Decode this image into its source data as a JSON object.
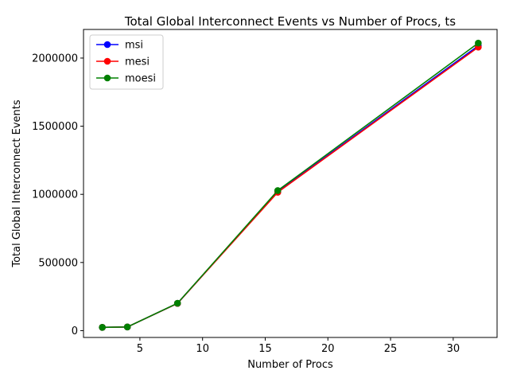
{
  "chart_data": {
    "type": "line",
    "title": "Total Global Interconnect Events vs Number of Procs, ts",
    "xlabel": "Number of Procs",
    "ylabel": "Total Global Interconnect Events",
    "xlim": [
      0.5,
      33.5
    ],
    "ylim": [
      -50000,
      2210000
    ],
    "xticks": [
      5,
      10,
      15,
      20,
      25,
      30
    ],
    "xtick_labels": [
      "5",
      "10",
      "15",
      "20",
      "25",
      "30"
    ],
    "yticks": [
      0,
      500000,
      1000000,
      1500000,
      2000000
    ],
    "ytick_labels": [
      "0",
      "500000",
      "1000000",
      "1500000",
      "2000000"
    ],
    "grid": false,
    "legend_position": "top-left",
    "x": [
      2,
      4,
      8,
      16,
      32
    ],
    "series": [
      {
        "name": "msi",
        "color": "#0000ff",
        "values": [
          24000,
          27000,
          200000,
          1020000,
          2090000
        ]
      },
      {
        "name": "mesi",
        "color": "#ff0000",
        "values": [
          24000,
          27000,
          200000,
          1015000,
          2080000
        ]
      },
      {
        "name": "moesi",
        "color": "#008000",
        "values": [
          24000,
          27000,
          201000,
          1028000,
          2110000
        ]
      }
    ]
  }
}
